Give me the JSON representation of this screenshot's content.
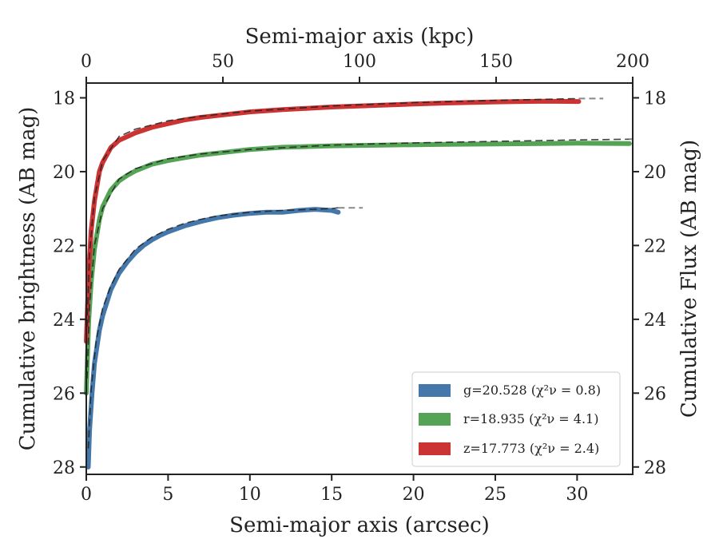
{
  "chart_data": {
    "type": "line",
    "xlabel": "Semi-major axis (arcsec)",
    "ylabel": "Cumulative brightness (AB mag)",
    "top_xlabel": "Semi-major axis (kpc)",
    "right_ylabel": "Cumulative Flux (AB mag)",
    "xlim": [
      0,
      33.4
    ],
    "ylim": [
      28.2,
      17.6
    ],
    "top_xlim": [
      0,
      200
    ],
    "y_inverted": true,
    "grid": false,
    "legend_position": "lower-right",
    "x_ticks": [
      "0",
      "5",
      "10",
      "15",
      "20",
      "25",
      "30"
    ],
    "top_x_ticks": [
      "0",
      "50",
      "100",
      "150",
      "200"
    ],
    "y_ticks": [
      "18",
      "20",
      "22",
      "24",
      "26",
      "28"
    ],
    "legend": [
      "g=20.528 (χ²ν = 0.8)",
      "r=18.935 (χ²ν = 4.1)",
      "z=17.773 (χ²ν = 2.4)"
    ],
    "series": [
      {
        "name": "g=20.528 (χ²ν = 0.8)",
        "color": "#4477aa",
        "x": [
          0.12,
          0.2,
          0.35,
          0.5,
          0.8,
          1.0,
          1.5,
          2,
          2.5,
          3,
          3.5,
          4,
          4.5,
          5,
          6,
          7,
          8,
          9,
          10,
          11,
          12,
          13,
          14,
          15,
          15.4
        ],
        "y": [
          28.0,
          27.0,
          26.0,
          25.2,
          24.3,
          23.9,
          23.2,
          22.75,
          22.45,
          22.2,
          22.0,
          21.85,
          21.73,
          21.63,
          21.47,
          21.35,
          21.25,
          21.18,
          21.13,
          21.1,
          21.1,
          21.05,
          21.02,
          21.05,
          21.1
        ]
      },
      {
        "name": "r=18.935 (χ²ν = 4.1)",
        "color": "#55a355",
        "x": [
          0.0,
          0.05,
          0.15,
          0.3,
          0.5,
          0.8,
          1.0,
          1.5,
          2,
          2.5,
          3,
          4,
          5,
          6,
          7,
          8,
          10,
          12,
          15,
          18,
          20,
          22,
          25,
          28,
          30,
          33.2
        ],
        "y": [
          26.0,
          25.3,
          24.0,
          23.0,
          22.1,
          21.3,
          20.95,
          20.5,
          20.25,
          20.1,
          19.98,
          19.8,
          19.7,
          19.62,
          19.55,
          19.5,
          19.4,
          19.34,
          19.3,
          19.28,
          19.27,
          19.26,
          19.25,
          19.24,
          19.23,
          19.24
        ]
      },
      {
        "name": "z=17.773 (χ²ν = 2.4)",
        "color": "#cc3333",
        "x": [
          0.0,
          0.05,
          0.15,
          0.3,
          0.5,
          0.8,
          1.0,
          1.5,
          2,
          3,
          4,
          5,
          6,
          7,
          8,
          10,
          12,
          15,
          18,
          20,
          22,
          25,
          28,
          30.1
        ],
        "y": [
          24.6,
          24.0,
          22.7,
          21.6,
          20.8,
          20.0,
          19.75,
          19.35,
          19.15,
          18.95,
          18.8,
          18.7,
          18.6,
          18.53,
          18.48,
          18.38,
          18.32,
          18.25,
          18.2,
          18.17,
          18.14,
          18.11,
          18.09,
          18.1
        ]
      }
    ],
    "models": [
      {
        "band": "g",
        "x": [
          0.12,
          0.3,
          0.6,
          1,
          1.5,
          2,
          3,
          4,
          5,
          6,
          7,
          8,
          10,
          12,
          15,
          15.4
        ],
        "y": [
          27.5,
          25.9,
          24.6,
          23.7,
          23.1,
          22.65,
          22.1,
          21.78,
          21.56,
          21.4,
          21.29,
          21.2,
          21.1,
          21.05,
          21.0,
          20.98
        ]
      },
      {
        "band": "r",
        "x": [
          0.05,
          0.2,
          0.5,
          1,
          2,
          3,
          5,
          7,
          10,
          15,
          20,
          25,
          30,
          33.2
        ],
        "y": [
          25.6,
          23.6,
          22.0,
          21.0,
          20.2,
          19.92,
          19.65,
          19.52,
          19.4,
          19.28,
          19.22,
          19.18,
          19.14,
          19.12
        ]
      },
      {
        "band": "z",
        "x": [
          0.05,
          0.2,
          0.5,
          1,
          2,
          3,
          5,
          7,
          10,
          15,
          20,
          25,
          30.1
        ],
        "y": [
          24.2,
          22.2,
          20.7,
          19.7,
          19.05,
          18.85,
          18.62,
          18.5,
          18.36,
          18.22,
          18.13,
          18.07,
          18.02
        ]
      }
    ]
  }
}
